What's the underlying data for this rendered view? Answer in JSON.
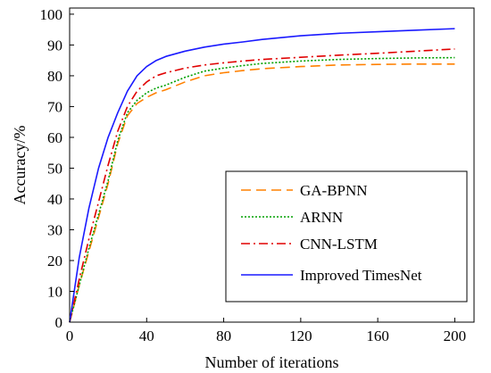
{
  "chart_data": {
    "type": "line",
    "xlabel": "Number of iterations",
    "ylabel": "Accuracy/%",
    "xlim": [
      0,
      210
    ],
    "ylim": [
      0,
      102
    ],
    "xticks": [
      0,
      40,
      80,
      120,
      160,
      200
    ],
    "yticks": [
      0,
      10,
      20,
      30,
      40,
      50,
      60,
      70,
      80,
      90,
      100
    ],
    "grid": false,
    "legend_position": "bottom-right",
    "series": [
      {
        "name": "GA-BPNN",
        "color": "#ff8000",
        "dash": "dashed",
        "x": [
          0,
          5,
          10,
          15,
          20,
          25,
          30,
          35,
          40,
          45,
          50,
          60,
          70,
          80,
          90,
          100,
          120,
          140,
          160,
          180,
          200
        ],
        "y": [
          0,
          12,
          23,
          34,
          45,
          58,
          67,
          71,
          73,
          74.5,
          75.5,
          78,
          80,
          81,
          81.7,
          82.3,
          83,
          83.5,
          83.7,
          83.8,
          83.8
        ]
      },
      {
        "name": "ARNN",
        "color": "#00a000",
        "dash": "dotted",
        "x": [
          0,
          5,
          10,
          15,
          20,
          25,
          30,
          35,
          40,
          45,
          50,
          60,
          70,
          80,
          90,
          100,
          120,
          140,
          160,
          180,
          200
        ],
        "y": [
          0,
          12,
          24,
          35,
          46,
          59,
          68,
          72,
          74.5,
          76,
          77,
          79.5,
          81.5,
          82.5,
          83.3,
          84,
          84.8,
          85.3,
          85.6,
          85.8,
          85.9
        ]
      },
      {
        "name": "CNN-LSTM",
        "color": "#e00000",
        "dash": "dashdot",
        "x": [
          0,
          5,
          10,
          15,
          20,
          25,
          30,
          35,
          40,
          45,
          50,
          60,
          70,
          80,
          90,
          100,
          120,
          140,
          160,
          180,
          200
        ],
        "y": [
          0,
          14,
          27,
          39,
          51,
          62,
          70,
          75,
          78,
          80,
          81,
          82.5,
          83.5,
          84.2,
          84.8,
          85.3,
          86,
          86.7,
          87.3,
          88,
          88.7
        ]
      },
      {
        "name": "Improved TimesNet",
        "color": "#1a1aff",
        "dash": "solid",
        "x": [
          0,
          5,
          10,
          15,
          20,
          25,
          30,
          35,
          40,
          45,
          50,
          60,
          70,
          80,
          90,
          100,
          120,
          140,
          160,
          180,
          200
        ],
        "y": [
          0,
          21,
          37,
          50,
          60,
          68,
          75,
          80,
          83,
          85,
          86.3,
          88,
          89.3,
          90.3,
          91,
          91.8,
          93,
          93.8,
          94.3,
          94.8,
          95.3
        ]
      }
    ]
  }
}
